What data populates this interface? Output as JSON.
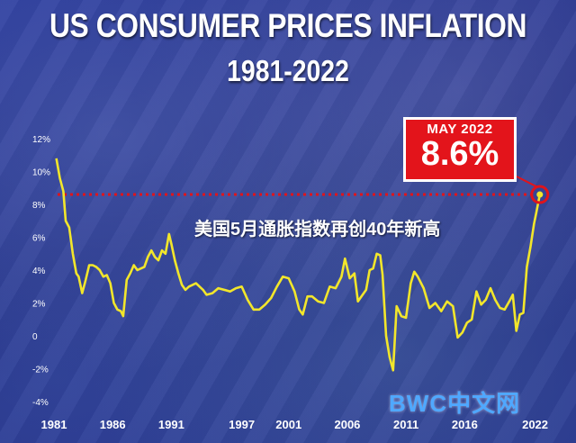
{
  "chart_data": {
    "type": "line",
    "title": "US CONSUMER PRICES INFLATION",
    "subtitle": "1981-2022",
    "ylim": [
      -4,
      12
    ],
    "y_ticks": [
      "12%",
      "10%",
      "8%",
      "6%",
      "4%",
      "2%",
      "0",
      "-2%",
      "-4%"
    ],
    "y_tick_values": [
      12,
      10,
      8,
      6,
      4,
      2,
      0,
      -2,
      -4
    ],
    "x_ticks": [
      "1981",
      "1986",
      "1991",
      "1997",
      "2001",
      "2006",
      "2011",
      "2016",
      "2022"
    ],
    "x_tick_values": [
      1981,
      1986,
      1991,
      1997,
      2001,
      2006,
      2011,
      2016,
      2022
    ],
    "xlim": [
      1981,
      2022.8
    ],
    "reference_line_value": 8.6,
    "series": [
      {
        "color": "#f2e62b",
        "x": [
          1981.2,
          1981.5,
          1981.8,
          1982.0,
          1982.3,
          1982.6,
          1982.9,
          1983.1,
          1983.4,
          1983.7,
          1984.0,
          1984.3,
          1984.6,
          1984.9,
          1985.2,
          1985.5,
          1985.8,
          1986.1,
          1986.4,
          1986.7,
          1986.9,
          1987.2,
          1987.5,
          1987.8,
          1988.1,
          1988.4,
          1988.7,
          1989.0,
          1989.3,
          1989.6,
          1989.9,
          1990.2,
          1990.5,
          1990.8,
          1991.0,
          1991.3,
          1991.6,
          1991.9,
          1992.2,
          1992.5,
          1992.8,
          1993.1,
          1993.4,
          1993.7,
          1994.0,
          1994.5,
          1995.0,
          1995.5,
          1996.0,
          1996.5,
          1997.0,
          1997.5,
          1998.0,
          1998.5,
          1999.0,
          1999.5,
          2000.0,
          2000.5,
          2001.0,
          2001.5,
          2001.9,
          2002.2,
          2002.6,
          2003.0,
          2003.5,
          2004.0,
          2004.5,
          2005.0,
          2005.5,
          2005.8,
          2006.2,
          2006.6,
          2006.9,
          2007.3,
          2007.6,
          2007.9,
          2008.2,
          2008.5,
          2008.8,
          2009.0,
          2009.3,
          2009.6,
          2009.9,
          2010.2,
          2010.6,
          2011.0,
          2011.4,
          2011.7,
          2012.0,
          2012.5,
          2013.0,
          2013.5,
          2014.0,
          2014.5,
          2015.0,
          2015.4,
          2015.8,
          2016.2,
          2016.6,
          2017.0,
          2017.4,
          2017.8,
          2018.2,
          2018.6,
          2019.0,
          2019.4,
          2019.8,
          2020.1,
          2020.4,
          2020.7,
          2021.0,
          2021.3,
          2021.6,
          2021.9,
          2022.1,
          2022.4
        ],
        "values": [
          10.8,
          9.6,
          8.8,
          7.0,
          6.6,
          5.0,
          3.8,
          3.6,
          2.6,
          3.4,
          4.3,
          4.3,
          4.2,
          4.0,
          3.6,
          3.7,
          3.2,
          2.0,
          1.6,
          1.5,
          1.2,
          3.4,
          3.8,
          4.3,
          4.0,
          4.1,
          4.2,
          4.8,
          5.2,
          4.8,
          4.6,
          5.2,
          5.0,
          6.2,
          5.6,
          4.6,
          3.8,
          3.1,
          2.8,
          3.0,
          3.1,
          3.2,
          3.0,
          2.8,
          2.5,
          2.6,
          2.9,
          2.8,
          2.7,
          2.9,
          3.0,
          2.2,
          1.6,
          1.6,
          1.9,
          2.3,
          3.0,
          3.6,
          3.5,
          2.7,
          1.6,
          1.3,
          2.4,
          2.4,
          2.1,
          2.0,
          3.0,
          2.9,
          3.6,
          4.7,
          3.5,
          3.8,
          2.1,
          2.5,
          2.8,
          4.0,
          4.1,
          5.0,
          4.9,
          3.7,
          0.0,
          -1.3,
          -2.1,
          1.8,
          1.2,
          1.1,
          3.2,
          3.9,
          3.6,
          2.9,
          1.7,
          2.0,
          1.5,
          2.1,
          1.8,
          -0.1,
          0.2,
          0.8,
          1.0,
          2.7,
          1.9,
          2.2,
          2.9,
          2.2,
          1.7,
          1.6,
          2.1,
          2.5,
          0.3,
          1.3,
          1.4,
          4.2,
          5.4,
          6.8,
          7.5,
          8.6
        ]
      }
    ]
  },
  "callout": {
    "month": "MAY 2022",
    "value": "8.6%"
  },
  "annotation": "美国5月通胀指数再创40年新高",
  "watermark": "BWC中文网",
  "colors": {
    "line": "#f2e62b",
    "reference": "#e0141b",
    "callout_bg": "#e3141b"
  }
}
